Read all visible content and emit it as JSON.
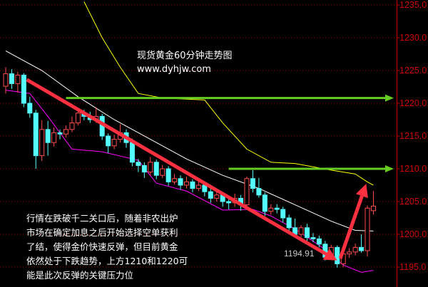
{
  "chart_data": {
    "type": "candlestick",
    "title": "现货黄金60分钟走势图",
    "subtitle": "www.dyhjw.com",
    "ylim": [
      1193.5,
      1235.5
    ],
    "yticks": [
      "1195.0",
      "1200.0",
      "1205.0",
      "1210.0",
      "1215.0",
      "1220.0",
      "1225.0",
      "1230.0",
      "1235.0"
    ],
    "grid": true,
    "colors": {
      "up": "#ff4d4d",
      "down": "#54ffff",
      "ma_white": "#ffffff",
      "ma_yellow": "#ffff00",
      "ma_magenta": "#ff00ff",
      "axis": "#cc0000",
      "level_line": "#66cc22",
      "arrow": "#ff3040"
    },
    "candles_ohlc": [
      [
        1222.6,
        1225.5,
        1221.5,
        1224.5
      ],
      [
        1224.5,
        1225.2,
        1222.2,
        1223
      ],
      [
        1223,
        1224.8,
        1221.6,
        1224.3
      ],
      [
        1224.3,
        1224.6,
        1219.4,
        1220
      ],
      [
        1220,
        1221,
        1217.8,
        1218.5
      ],
      [
        1218.5,
        1219,
        1210,
        1212
      ],
      [
        1212,
        1217.4,
        1211.2,
        1216
      ],
      [
        1216,
        1217.3,
        1212,
        1214
      ],
      [
        1214,
        1216.3,
        1213.4,
        1215.5
      ],
      [
        1215.5,
        1216,
        1214.5,
        1215.3
      ],
      [
        1215.3,
        1216.6,
        1214.8,
        1216
      ],
      [
        1216,
        1218,
        1215.6,
        1217
      ],
      [
        1217,
        1219.2,
        1216.6,
        1218.5
      ],
      [
        1218.5,
        1219,
        1217.4,
        1218
      ],
      [
        1218,
        1218.7,
        1217,
        1217.5
      ],
      [
        1217.5,
        1219.4,
        1217,
        1218
      ],
      [
        1218,
        1218.4,
        1214.4,
        1215
      ],
      [
        1215,
        1215.4,
        1212.4,
        1213.5
      ],
      [
        1213.5,
        1215.2,
        1213,
        1214.5
      ],
      [
        1214.5,
        1216.8,
        1214,
        1215.5
      ],
      [
        1215.5,
        1216,
        1213.2,
        1214
      ],
      [
        1214,
        1214.6,
        1210.4,
        1211
      ],
      [
        1211,
        1211.5,
        1209.5,
        1210.5
      ],
      [
        1210.5,
        1211,
        1208.6,
        1209.5
      ],
      [
        1209.5,
        1211.8,
        1209,
        1211
      ],
      [
        1211,
        1211.4,
        1208.4,
        1209
      ],
      [
        1209,
        1210.6,
        1208.6,
        1210
      ],
      [
        1210,
        1210.4,
        1207.4,
        1208
      ],
      [
        1208,
        1209.2,
        1207.6,
        1208.5
      ],
      [
        1208.5,
        1209,
        1206.8,
        1207.5
      ],
      [
        1207.5,
        1208.8,
        1207,
        1208
      ],
      [
        1208,
        1208.4,
        1206.4,
        1207
      ],
      [
        1207,
        1208.2,
        1206.6,
        1207.5
      ],
      [
        1207.5,
        1208,
        1205.8,
        1206.5
      ],
      [
        1206.5,
        1207,
        1204.8,
        1205.5
      ],
      [
        1205.5,
        1206.8,
        1205,
        1206
      ],
      [
        1206,
        1206.4,
        1204.2,
        1205
      ],
      [
        1205,
        1205.6,
        1203.8,
        1204.8
      ],
      [
        1204.8,
        1206.2,
        1204.2,
        1205.5
      ],
      [
        1205.5,
        1206,
        1203.6,
        1204.5
      ],
      [
        1204.5,
        1208.8,
        1204.2,
        1208.5
      ],
      [
        1208.5,
        1209.8,
        1206.4,
        1207
      ],
      [
        1207,
        1208.6,
        1205.6,
        1206
      ],
      [
        1206,
        1206.4,
        1202.8,
        1203.5
      ],
      [
        1203.5,
        1204.6,
        1203,
        1204
      ],
      [
        1204,
        1204.6,
        1203.2,
        1203.8
      ],
      [
        1203.8,
        1204.2,
        1201.8,
        1202.5
      ],
      [
        1202.5,
        1203,
        1200.4,
        1201
      ],
      [
        1201,
        1202.4,
        1199.6,
        1200
      ],
      [
        1200,
        1201.4,
        1199.6,
        1201
      ],
      [
        1201,
        1201.6,
        1199,
        1199.5
      ],
      [
        1199.5,
        1200.2,
        1198.8,
        1199.3
      ],
      [
        1199.3,
        1199.8,
        1198,
        1198.5
      ],
      [
        1198.5,
        1199,
        1196,
        1196.5
      ],
      [
        1196.5,
        1198.4,
        1196.2,
        1198
      ],
      [
        1198,
        1198.3,
        1194.91,
        1195.5
      ],
      [
        1195.5,
        1197.8,
        1195,
        1197
      ],
      [
        1197,
        1197.9,
        1196.4,
        1197.3
      ],
      [
        1197.3,
        1198.6,
        1196.8,
        1198
      ],
      [
        1198,
        1200,
        1197.2,
        1197.5
      ],
      [
        1197.5,
        1204.4,
        1196.6,
        1204
      ],
      [
        1203.6,
        1206.6,
        1203,
        1204.3
      ]
    ],
    "ma_white": [
      [
        0,
        1228
      ],
      [
        6,
        1225
      ],
      [
        12,
        1221
      ],
      [
        18,
        1217.5
      ],
      [
        24,
        1214.5
      ],
      [
        30,
        1211.5
      ],
      [
        36,
        1209
      ],
      [
        42,
        1207
      ],
      [
        48,
        1204.5
      ],
      [
        54,
        1202
      ],
      [
        58,
        1200.6
      ],
      [
        61,
        1200.5
      ]
    ],
    "ma_yellow": [
      [
        13,
        1235.5
      ],
      [
        16,
        1230
      ],
      [
        19,
        1225.5
      ],
      [
        22,
        1221.5
      ],
      [
        26,
        1220.8
      ],
      [
        33,
        1220.5
      ],
      [
        36,
        1217
      ],
      [
        40,
        1213
      ],
      [
        44,
        1211
      ],
      [
        48,
        1210.8
      ],
      [
        54,
        1209.8
      ],
      [
        58,
        1209.2
      ],
      [
        60,
        1208
      ],
      [
        61,
        1207.5
      ]
    ],
    "ma_magenta": [
      [
        0,
        1222
      ],
      [
        4,
        1221.5
      ],
      [
        7,
        1218
      ],
      [
        11,
        1213
      ],
      [
        16,
        1212.6
      ],
      [
        22,
        1211.3
      ],
      [
        25,
        1207.8
      ],
      [
        30,
        1206.6
      ],
      [
        36,
        1203.7
      ],
      [
        41,
        1203.8
      ],
      [
        44,
        1202.8
      ],
      [
        48,
        1200.8
      ],
      [
        53,
        1197.7
      ],
      [
        56,
        1195.3
      ],
      [
        59,
        1194.2
      ],
      [
        61,
        1194.5
      ]
    ],
    "levels": [
      {
        "value": 1220.8,
        "from": 10
      },
      {
        "value": 1210,
        "from": 37
      }
    ],
    "arrows": [
      {
        "from": [
          3.5,
          1223.6
        ],
        "to": [
          55,
          1196
        ]
      },
      {
        "from": [
          55.5,
          1196.3
        ],
        "to": [
          59.8,
          1207.7
        ]
      }
    ],
    "low_label": "1194.91",
    "annotation": [
      "行情在跌破千二关口后，随着非农出炉",
      "市场在确定加息之后开始选择空单获利",
      "了结，使得金价快速反弹，但目前黄金",
      "依然处于下跌趋势，上方1210和1220可",
      "能是此次反弹的关键压力位"
    ]
  }
}
